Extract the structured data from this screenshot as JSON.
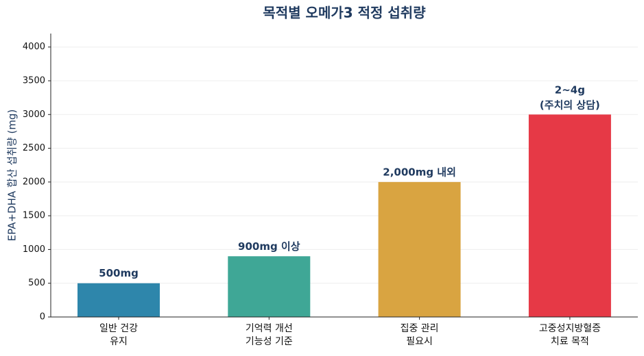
{
  "chart_data": {
    "type": "bar",
    "title": "목적별 오메가3 적정 섭취량",
    "ylabel": "EPA+DHA 합산 섭취량 (mg)",
    "categories": [
      "일반 건강\n유지",
      "기억력 개선\n기능성 기준",
      "집중 관리\n필요시",
      "고중성지방혈증\n치료 목적"
    ],
    "values": [
      500,
      900,
      2000,
      3000
    ],
    "value_labels": [
      "500mg",
      "900mg 이상",
      "2,000mg 내외",
      "2~4g\n(주치의 상담)"
    ],
    "colors": [
      "#2e86ab",
      "#3fa796",
      "#d9a441",
      "#e63946"
    ],
    "ylim": [
      0,
      4200
    ],
    "yticks": [
      0,
      500,
      1000,
      1500,
      2000,
      2500,
      3000,
      3500,
      4000
    ],
    "grid": true
  }
}
